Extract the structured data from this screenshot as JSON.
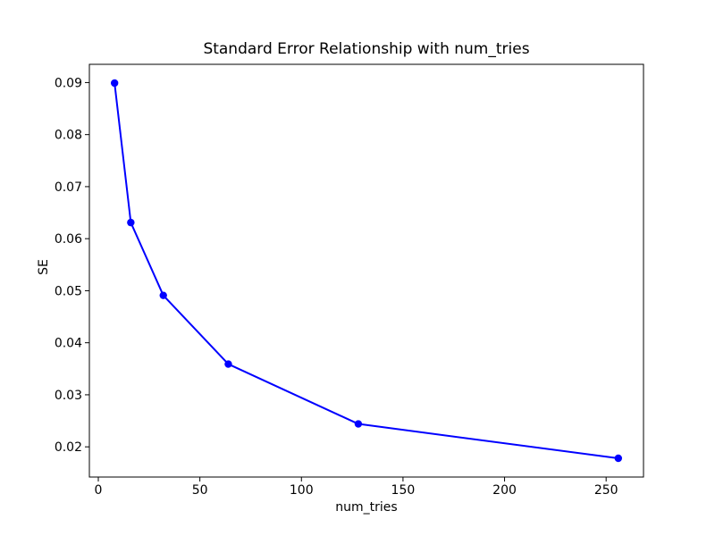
{
  "figure": {
    "background_color": "#ffffff",
    "text_color": "#000000",
    "spine_color": "#000000"
  },
  "chart_data": {
    "type": "line",
    "title": "Standard Error Relationship with num_tries",
    "xlabel": "num_tries",
    "ylabel": "SE",
    "x": [
      8,
      16,
      32,
      64,
      128,
      256
    ],
    "y": [
      0.0899,
      0.0631,
      0.0491,
      0.0359,
      0.0244,
      0.0178
    ],
    "series_name": "SE vs num_tries",
    "line_color": "#0000ff",
    "marker": "o",
    "marker_radius": 4.2,
    "line_width": 2,
    "grid": false,
    "legend_position": "none",
    "xlim": [
      -4.4,
      268.4
    ],
    "ylim": [
      0.014195,
      0.093505
    ],
    "xticks": {
      "values": [
        0,
        50,
        100,
        150,
        200,
        250
      ],
      "labels": [
        "0",
        "50",
        "100",
        "150",
        "200",
        "250"
      ]
    },
    "yticks": {
      "values": [
        0.02,
        0.03,
        0.04,
        0.05,
        0.06,
        0.07,
        0.08,
        0.09
      ],
      "labels": [
        "0.02",
        "0.03",
        "0.04",
        "0.05",
        "0.06",
        "0.07",
        "0.08",
        "0.09"
      ]
    }
  }
}
